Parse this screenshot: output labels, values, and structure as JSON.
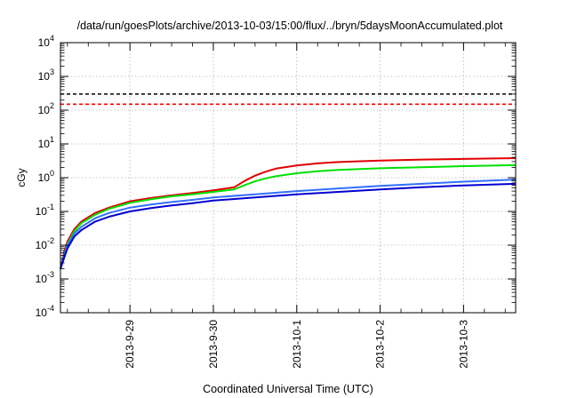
{
  "chart_data": {
    "type": "line",
    "title": "/data/run/goesPlots/archive/2013-10-03/15:00/flux/../bryn/5daysMoonAccumulated.plot",
    "xlabel": "Coordinated Universal Time (UTC)",
    "ylabel": "cGy",
    "yscale": "log",
    "ylim": [
      0.0001,
      10000
    ],
    "xlim": [
      "2013-09-28 04:00",
      "2013-10-03 15:00"
    ],
    "x_ticks": [
      "2013-9-29",
      "2013-9-30",
      "2013-10-1",
      "2013-10-2",
      "2013-10-3"
    ],
    "y_tick_labels": [
      {
        "base": "10",
        "exp": "-4"
      },
      {
        "base": "10",
        "exp": "-3"
      },
      {
        "base": "10",
        "exp": "-2"
      },
      {
        "base": "10",
        "exp": "-1"
      },
      {
        "base": "10",
        "exp": "0"
      },
      {
        "base": "10",
        "exp": "1"
      },
      {
        "base": "10",
        "exp": "2"
      },
      {
        "base": "10",
        "exp": "3"
      },
      {
        "base": "10",
        "exp": "4"
      }
    ],
    "grid": true,
    "reference_lines": [
      {
        "y": 300,
        "color": "#000000",
        "style": "dashed"
      },
      {
        "y": 150,
        "color": "#ff0000",
        "style": "dashed"
      }
    ],
    "series": [
      {
        "color": "#e00000",
        "x": [
          "2013-09-28 04:00",
          "2013-09-28 05:00",
          "2013-09-28 06:00",
          "2013-09-28 08:00",
          "2013-09-28 10:00",
          "2013-09-28 14:00",
          "2013-09-28 18:00",
          "2013-09-29 00:00",
          "2013-09-29 06:00",
          "2013-09-29 12:00",
          "2013-09-29 18:00",
          "2013-09-30 00:00",
          "2013-09-30 06:00",
          "2013-09-30 09:00",
          "2013-09-30 12:00",
          "2013-09-30 15:00",
          "2013-09-30 18:00",
          "2013-10-01 00:00",
          "2013-10-01 06:00",
          "2013-10-01 12:00",
          "2013-10-02 00:00",
          "2013-10-02 12:00",
          "2013-10-03 00:00",
          "2013-10-03 15:00"
        ],
        "y": [
          0.002,
          0.006,
          0.013,
          0.03,
          0.05,
          0.09,
          0.13,
          0.2,
          0.25,
          0.3,
          0.35,
          0.42,
          0.52,
          0.8,
          1.15,
          1.5,
          1.85,
          2.3,
          2.65,
          2.9,
          3.2,
          3.45,
          3.6,
          3.8
        ]
      },
      {
        "color": "#00e000",
        "x": [
          "2013-09-28 04:00",
          "2013-09-28 05:00",
          "2013-09-28 06:00",
          "2013-09-28 08:00",
          "2013-09-28 10:00",
          "2013-09-28 14:00",
          "2013-09-28 18:00",
          "2013-09-29 00:00",
          "2013-09-29 06:00",
          "2013-09-29 12:00",
          "2013-09-29 18:00",
          "2013-09-30 00:00",
          "2013-09-30 06:00",
          "2013-09-30 09:00",
          "2013-09-30 12:00",
          "2013-09-30 15:00",
          "2013-09-30 18:00",
          "2013-10-01 00:00",
          "2013-10-01 06:00",
          "2013-10-01 12:00",
          "2013-10-02 00:00",
          "2013-10-02 12:00",
          "2013-10-03 00:00",
          "2013-10-03 15:00"
        ],
        "y": [
          0.002,
          0.005,
          0.011,
          0.026,
          0.045,
          0.08,
          0.12,
          0.18,
          0.23,
          0.28,
          0.32,
          0.38,
          0.45,
          0.6,
          0.78,
          0.95,
          1.1,
          1.35,
          1.55,
          1.7,
          1.9,
          2.05,
          2.2,
          2.35
        ]
      },
      {
        "color": "#3070ff",
        "x": [
          "2013-09-28 04:00",
          "2013-09-28 05:00",
          "2013-09-28 06:00",
          "2013-09-28 08:00",
          "2013-09-28 10:00",
          "2013-09-28 14:00",
          "2013-09-28 18:00",
          "2013-09-29 00:00",
          "2013-09-29 06:00",
          "2013-09-29 12:00",
          "2013-09-29 18:00",
          "2013-09-30 00:00",
          "2013-09-30 12:00",
          "2013-10-01 00:00",
          "2013-10-01 12:00",
          "2013-10-02 00:00",
          "2013-10-02 12:00",
          "2013-10-03 00:00",
          "2013-10-03 15:00"
        ],
        "y": [
          0.002,
          0.005,
          0.01,
          0.022,
          0.035,
          0.063,
          0.09,
          0.13,
          0.16,
          0.19,
          0.22,
          0.26,
          0.32,
          0.4,
          0.48,
          0.57,
          0.66,
          0.76,
          0.88
        ]
      },
      {
        "color": "#0000d0",
        "x": [
          "2013-09-28 04:00",
          "2013-09-28 05:00",
          "2013-09-28 06:00",
          "2013-09-28 08:00",
          "2013-09-28 10:00",
          "2013-09-28 14:00",
          "2013-09-28 18:00",
          "2013-09-29 00:00",
          "2013-09-29 06:00",
          "2013-09-29 12:00",
          "2013-09-29 18:00",
          "2013-09-30 00:00",
          "2013-09-30 12:00",
          "2013-10-01 00:00",
          "2013-10-01 12:00",
          "2013-10-02 00:00",
          "2013-10-02 12:00",
          "2013-10-03 00:00",
          "2013-10-03 15:00"
        ],
        "y": [
          0.002,
          0.004,
          0.008,
          0.018,
          0.028,
          0.05,
          0.07,
          0.1,
          0.125,
          0.15,
          0.175,
          0.21,
          0.26,
          0.32,
          0.38,
          0.45,
          0.52,
          0.59,
          0.66
        ]
      }
    ]
  }
}
